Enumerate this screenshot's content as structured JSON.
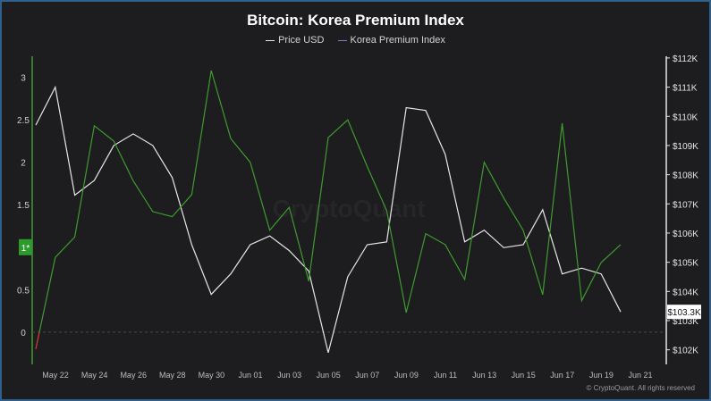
{
  "footer": "© CryptoQuant. All rights reserved",
  "watermark": "CryptoQuant",
  "colors": {
    "price": "#e6e6e6",
    "premium": "#3f9b2f",
    "premium_legend": "#7b7bd4",
    "background": "#1d1d1f"
  },
  "chart_data": {
    "type": "line",
    "title": "Bitcoin: Korea Premium Index",
    "legend": [
      "Price USD",
      "Korea Premium Index"
    ],
    "legend_position": "top-center",
    "x_tick_labels": [
      "May 22",
      "May 24",
      "May 26",
      "May 28",
      "May 30",
      "Jun 01",
      "Jun 03",
      "Jun 05",
      "Jun 07",
      "Jun 09",
      "Jun 11",
      "Jun 13",
      "Jun 15",
      "Jun 17",
      "Jun 19",
      "Jun 21"
    ],
    "x": [
      "May 21",
      "May 22",
      "May 23",
      "May 24",
      "May 25",
      "May 26",
      "May 27",
      "May 28",
      "May 29",
      "May 30",
      "May 31",
      "Jun 01",
      "Jun 02",
      "Jun 03",
      "Jun 04",
      "Jun 05",
      "Jun 06",
      "Jun 07",
      "Jun 08",
      "Jun 09",
      "Jun 10",
      "Jun 11",
      "Jun 12",
      "Jun 13",
      "Jun 14",
      "Jun 15",
      "Jun 16",
      "Jun 17",
      "Jun 18",
      "Jun 19",
      "Jun 20"
    ],
    "series": [
      {
        "name": "Price USD",
        "axis": "right",
        "unit": "USD",
        "values": [
          109700,
          111000,
          107300,
          107800,
          109000,
          109400,
          109000,
          107900,
          105600,
          103900,
          104600,
          105600,
          105900,
          105400,
          104700,
          101900,
          104500,
          105600,
          105700,
          110300,
          110200,
          108700,
          105700,
          106100,
          105500,
          105600,
          106800,
          104600,
          104800,
          104600,
          103300
        ]
      },
      {
        "name": "Korea Premium Index",
        "axis": "left",
        "unit": "%",
        "values": [
          -0.2,
          0.88,
          1.12,
          2.43,
          2.25,
          1.78,
          1.42,
          1.36,
          1.62,
          3.08,
          2.28,
          2.0,
          1.2,
          1.47,
          0.6,
          2.29,
          2.5,
          1.95,
          1.43,
          0.23,
          1.16,
          1.03,
          0.62,
          2.0,
          1.58,
          1.2,
          0.44,
          2.46,
          0.37,
          0.82,
          1.03
        ]
      }
    ],
    "y_left": {
      "ticks": [
        0,
        0.5,
        1,
        1.5,
        2,
        2.5,
        3
      ],
      "range": [
        -0.38,
        3.28
      ]
    },
    "y_right": {
      "ticks": [
        "$102K",
        "$103K",
        "$104K",
        "$105K",
        "$106K",
        "$107K",
        "$108K",
        "$109K",
        "$110K",
        "$111K",
        "$112K"
      ],
      "range": [
        101500,
        112150
      ]
    },
    "left_marker_label": "1*",
    "last_price_label": "$103.3K",
    "zero_line": true,
    "grid": false
  }
}
